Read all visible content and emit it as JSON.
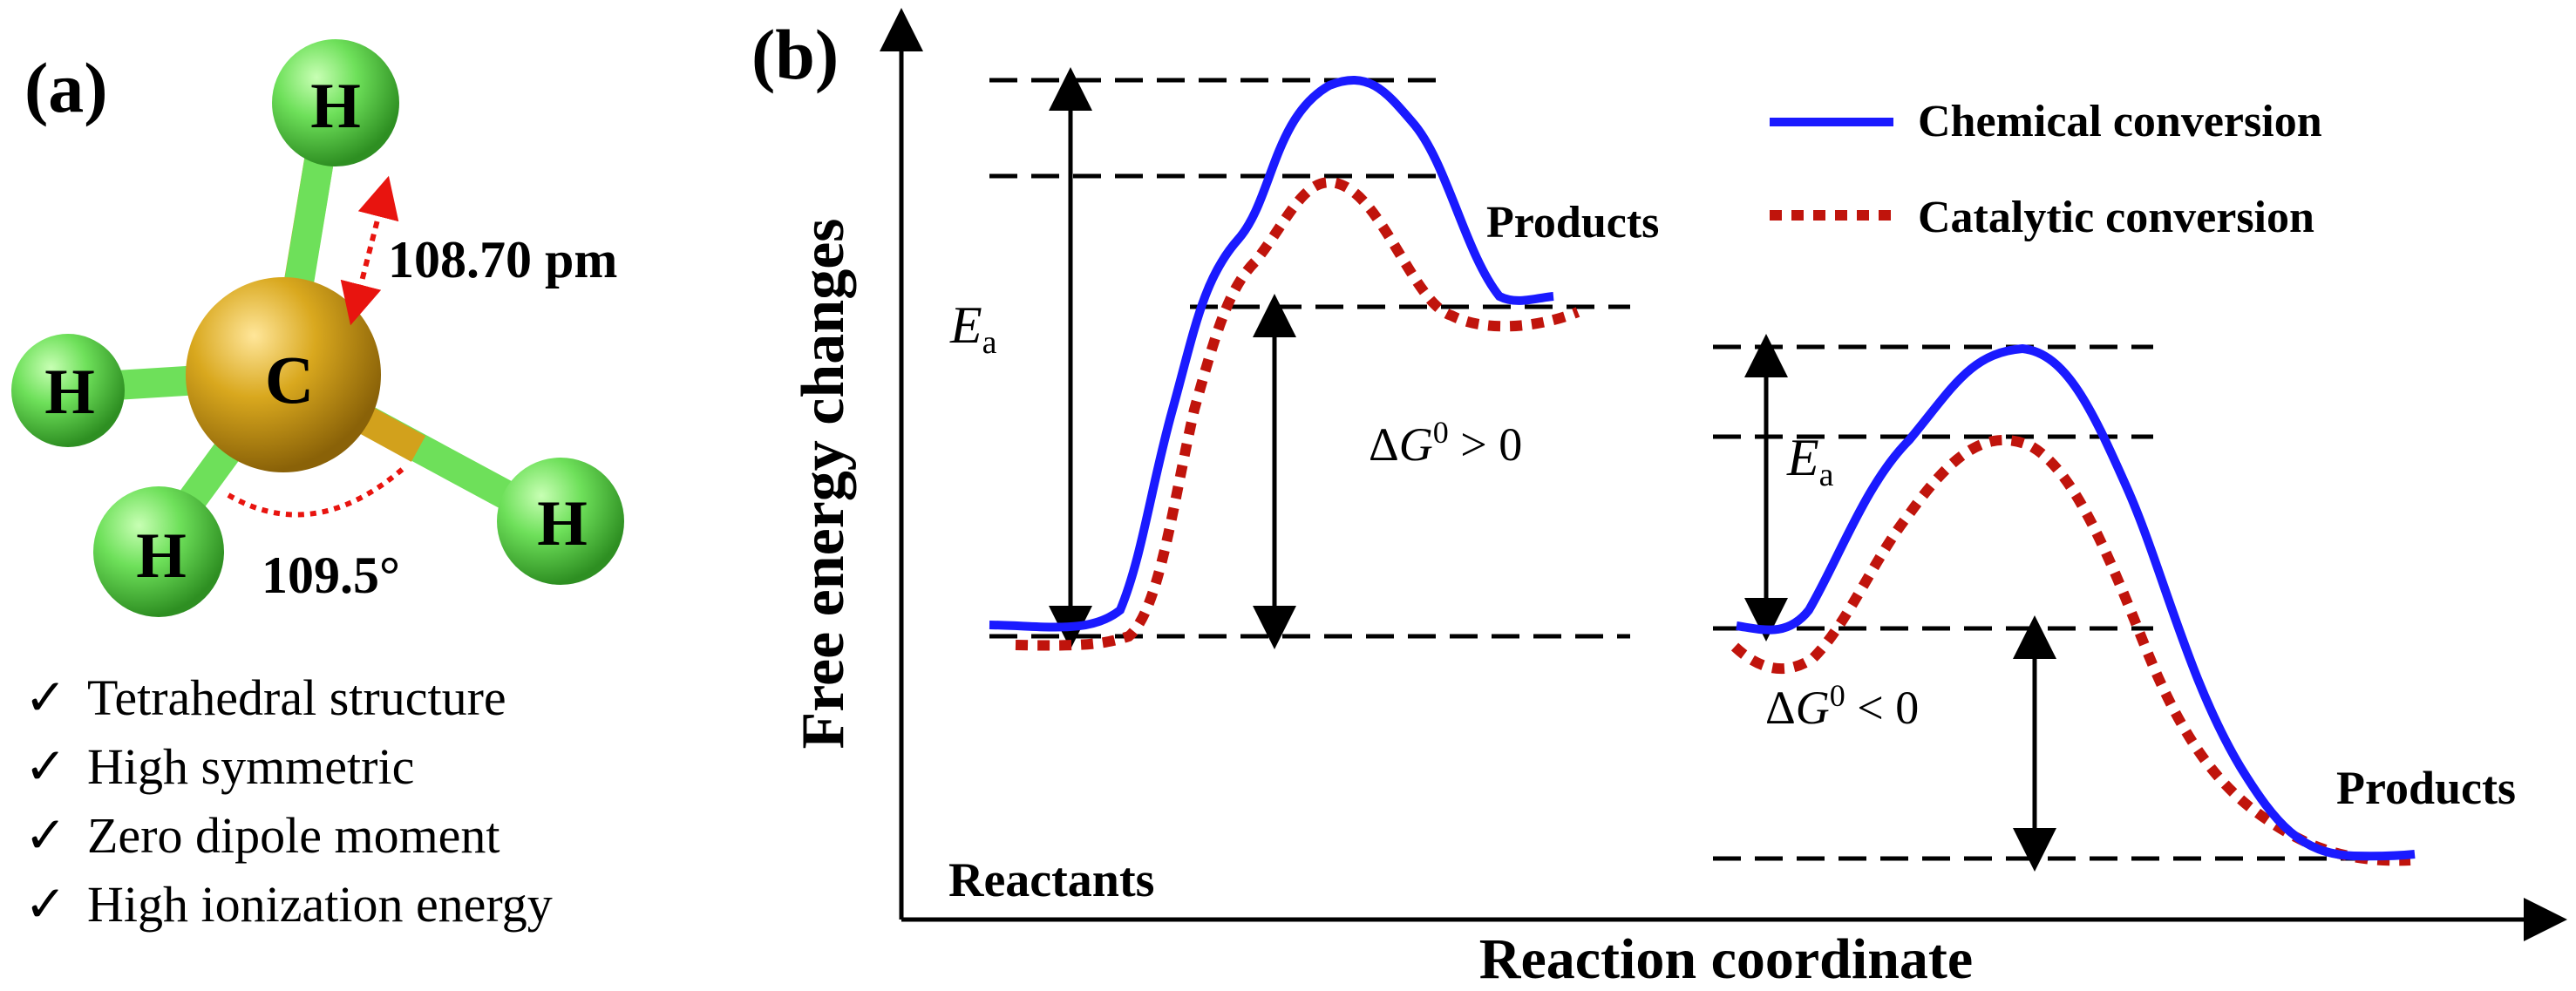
{
  "panel_a": {
    "label": "(a)",
    "atoms": {
      "carbon": "C",
      "hydrogen_top": "H",
      "hydrogen_left": "H",
      "hydrogen_bottom": "H",
      "hydrogen_right": "H"
    },
    "bond_length": "108.70 pm",
    "bond_angle": "109.5°",
    "properties": [
      "Tetrahedral structure",
      "High symmetric",
      "Zero dipole moment",
      "High ionization energy"
    ],
    "check_mark": "✓",
    "colors": {
      "hydrogen": "#5fd64a",
      "carbon": "#d6a21a",
      "annotation": "#e8140f"
    }
  },
  "panel_b": {
    "label": "(b)",
    "y_axis_label": "Free energy changes",
    "x_axis_label": "Reaction coordinate",
    "legend": {
      "chemical": "Chemical conversion",
      "catalytic": "Catalytic conversion"
    },
    "colors": {
      "chemical": "#1a1aff",
      "catalytic": "#c0140c"
    },
    "left_diagram": {
      "reactants_label": "Reactants",
      "products_label": "Products",
      "ea_symbol": "E",
      "ea_subscript": "a",
      "delta_g_prefix": "Δ",
      "delta_g_symbol": "G",
      "delta_g_sup": "0",
      "delta_g_relation": " > 0"
    },
    "right_diagram": {
      "products_label": "Products",
      "ea_symbol": "E",
      "ea_subscript": "a",
      "delta_g_prefix": "Δ",
      "delta_g_symbol": "G",
      "delta_g_sup": "0",
      "delta_g_relation": " < 0"
    }
  },
  "chart_data": {
    "type": "line",
    "title": "",
    "xlabel": "Reaction coordinate",
    "ylabel": "Free energy changes",
    "series": [
      {
        "name": "Chemical conversion",
        "style": "solid"
      },
      {
        "name": "Catalytic conversion",
        "style": "dotted"
      }
    ]
  }
}
